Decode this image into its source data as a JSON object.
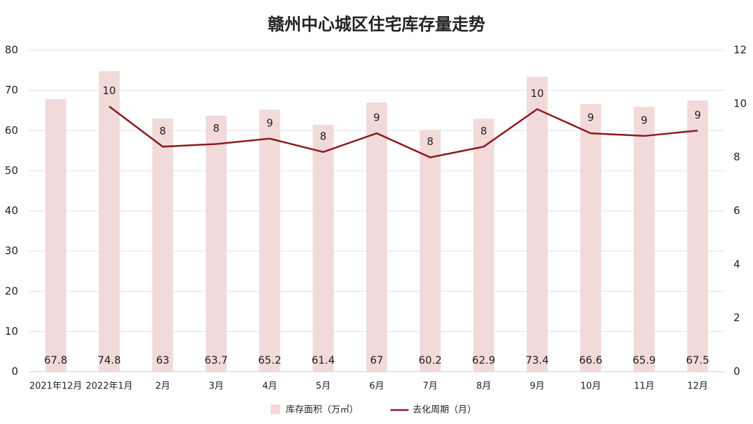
{
  "chart_data": {
    "type": "bar+line",
    "title": "赣州中心城区住宅库存量走势",
    "categories": [
      "2021年12月",
      "2022年1月",
      "2月",
      "3月",
      "4月",
      "5月",
      "6月",
      "7月",
      "8月",
      "9月",
      "10月",
      "11月",
      "12月"
    ],
    "series": [
      {
        "name": "库存面积（万㎡）",
        "type": "bar",
        "color": "#f2dada",
        "values": [
          67.8,
          74.8,
          63,
          63.7,
          65.2,
          61.4,
          67,
          60.2,
          62.9,
          73.4,
          66.6,
          65.9,
          67.5
        ]
      },
      {
        "name": "去化周期（月）",
        "type": "line",
        "axis": "y2",
        "color": "#8b1a1f",
        "values": [
          null,
          9.9,
          8.4,
          8.5,
          8.7,
          8.2,
          8.9,
          8.0,
          8.4,
          9.8,
          8.9,
          8.8,
          9.0
        ],
        "value_labels": [
          null,
          "10",
          "8",
          "8",
          "9",
          "8",
          "9",
          "8",
          "8",
          "10",
          "9",
          "9",
          "9"
        ]
      }
    ],
    "ylim": [
      0,
      80
    ],
    "yticks": [
      0,
      10,
      20,
      30,
      40,
      50,
      60,
      70,
      80
    ],
    "y2lim": [
      0,
      12
    ],
    "y2ticks": [
      0,
      2,
      4,
      6,
      8,
      10,
      12
    ],
    "grid": true,
    "legend": "bottom"
  }
}
